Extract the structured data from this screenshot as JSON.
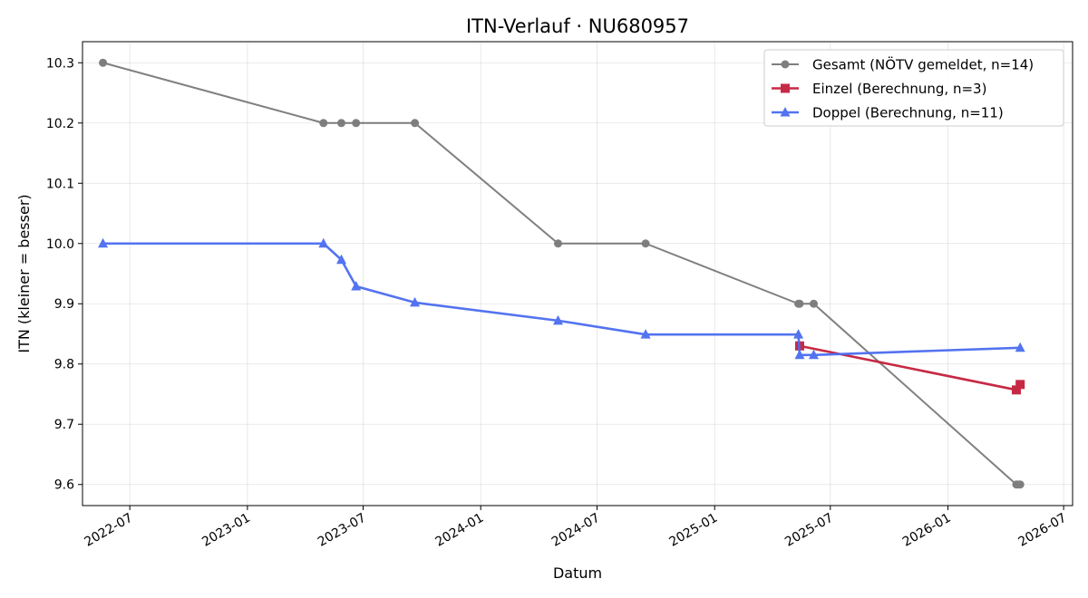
{
  "chart_data": {
    "type": "line",
    "title": "ITN-Verlauf · NU680957",
    "xlabel": "Datum",
    "ylabel": "ITN  (kleiner = besser)",
    "grid": true,
    "legend_position": "top-right",
    "xlim": [
      "2022-04-18",
      "2026-07-15"
    ],
    "ylim": [
      9.565,
      10.335
    ],
    "x_ticks": [
      "2022-07",
      "2023-01",
      "2023-07",
      "2024-01",
      "2024-07",
      "2025-01",
      "2025-07",
      "2026-01",
      "2026-07"
    ],
    "y_ticks": [
      "9.6",
      "9.7",
      "9.8",
      "9.9",
      "10.0",
      "10.1",
      "10.2",
      "10.3"
    ],
    "series": [
      {
        "name": "Gesamt (NÖTV gemeldet, n=14)",
        "color": "#555555",
        "marker": "circle",
        "points": [
          {
            "x": "2022-05-20",
            "y": 10.3
          },
          {
            "x": "2023-04-30",
            "y": 10.2
          },
          {
            "x": "2023-05-28",
            "y": 10.2
          },
          {
            "x": "2023-06-20",
            "y": 10.2
          },
          {
            "x": "2023-09-20",
            "y": 10.2
          },
          {
            "x": "2024-05-01",
            "y": 10.0
          },
          {
            "x": "2024-09-15",
            "y": 10.0
          },
          {
            "x": "2025-05-12",
            "y": 9.9
          },
          {
            "x": "2025-05-14",
            "y": 9.9
          },
          {
            "x": "2025-06-05",
            "y": 9.9
          },
          {
            "x": "2026-04-18",
            "y": 9.6
          },
          {
            "x": "2026-04-21",
            "y": 9.6
          },
          {
            "x": "2026-04-24",
            "y": 9.6
          }
        ]
      },
      {
        "name": "Einzel (Berechnung, n=3)",
        "color": "#c41e3a",
        "marker": "square",
        "points": [
          {
            "x": "2025-05-14",
            "y": 9.83
          },
          {
            "x": "2026-04-18",
            "y": 9.757
          },
          {
            "x": "2026-04-24",
            "y": 9.766
          }
        ]
      },
      {
        "name": "Doppel (Berechnung, n=11)",
        "color": "#4a6cf0",
        "marker": "triangle",
        "points": [
          {
            "x": "2022-05-20",
            "y": 10.0
          },
          {
            "x": "2023-04-30",
            "y": 10.0
          },
          {
            "x": "2023-05-28",
            "y": 9.973
          },
          {
            "x": "2023-06-20",
            "y": 9.929
          },
          {
            "x": "2023-09-20",
            "y": 9.902
          },
          {
            "x": "2024-05-01",
            "y": 9.872
          },
          {
            "x": "2024-09-15",
            "y": 9.849
          },
          {
            "x": "2025-05-12",
            "y": 9.849
          },
          {
            "x": "2025-05-14",
            "y": 9.815
          },
          {
            "x": "2025-06-05",
            "y": 9.815
          },
          {
            "x": "2026-04-24",
            "y": 9.827
          }
        ]
      }
    ]
  }
}
